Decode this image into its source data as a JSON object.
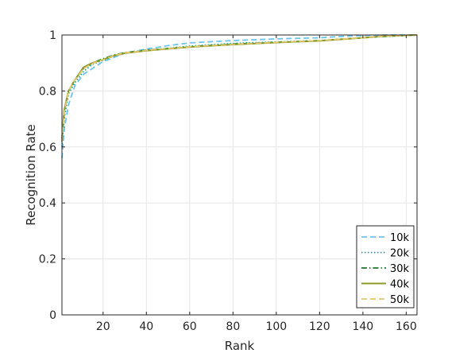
{
  "chart_data": {
    "type": "line",
    "title": "",
    "xlabel": "Rank",
    "ylabel": "Recognition Rate",
    "xlim": [
      1,
      165
    ],
    "ylim": [
      0,
      1
    ],
    "xticks": [
      20,
      40,
      60,
      80,
      100,
      120,
      140,
      160
    ],
    "yticks": [
      0,
      0.2,
      0.4,
      0.6,
      0.8,
      1
    ],
    "ytick_labels": [
      "0",
      "0.2",
      "0.4",
      "0.6",
      "0.8",
      "1"
    ],
    "grid": true,
    "legend_position": "bottom-right",
    "series": [
      {
        "name": "10k",
        "color": "#6ec4ee",
        "dash": "dashed",
        "points": [
          [
            1,
            0.56
          ],
          [
            2,
            0.66
          ],
          [
            4,
            0.75
          ],
          [
            7,
            0.82
          ],
          [
            11,
            0.86
          ],
          [
            15,
            0.88
          ],
          [
            20,
            0.905
          ],
          [
            25,
            0.92
          ],
          [
            30,
            0.935
          ],
          [
            40,
            0.95
          ],
          [
            50,
            0.962
          ],
          [
            60,
            0.972
          ],
          [
            80,
            0.98
          ],
          [
            100,
            0.986
          ],
          [
            120,
            0.99
          ],
          [
            130,
            0.995
          ],
          [
            140,
            0.998
          ],
          [
            150,
            1.0
          ],
          [
            165,
            1.0
          ]
        ]
      },
      {
        "name": "20k",
        "color": "#1aa39c",
        "dash": "dotted",
        "points": [
          [
            1,
            0.6
          ],
          [
            2,
            0.7
          ],
          [
            4,
            0.79
          ],
          [
            7,
            0.83
          ],
          [
            11,
            0.87
          ],
          [
            15,
            0.895
          ],
          [
            20,
            0.91
          ],
          [
            25,
            0.925
          ],
          [
            30,
            0.935
          ],
          [
            40,
            0.945
          ],
          [
            60,
            0.96
          ],
          [
            80,
            0.97
          ],
          [
            100,
            0.975
          ],
          [
            120,
            0.98
          ],
          [
            140,
            0.99
          ],
          [
            150,
            0.995
          ],
          [
            165,
            1.0
          ]
        ]
      },
      {
        "name": "30k",
        "color": "#1a7a2a",
        "dash": "dashdot",
        "points": [
          [
            1,
            0.62
          ],
          [
            2,
            0.72
          ],
          [
            4,
            0.8
          ],
          [
            7,
            0.84
          ],
          [
            11,
            0.88
          ],
          [
            15,
            0.9
          ],
          [
            20,
            0.915
          ],
          [
            25,
            0.928
          ],
          [
            30,
            0.937
          ],
          [
            40,
            0.946
          ],
          [
            60,
            0.958
          ],
          [
            80,
            0.968
          ],
          [
            100,
            0.974
          ],
          [
            120,
            0.98
          ],
          [
            140,
            0.99
          ],
          [
            150,
            0.995
          ],
          [
            165,
            1.0
          ]
        ]
      },
      {
        "name": "40k",
        "color": "#8c9a2a",
        "dash": "solid",
        "points": [
          [
            1,
            0.63
          ],
          [
            2,
            0.73
          ],
          [
            4,
            0.8
          ],
          [
            7,
            0.84
          ],
          [
            11,
            0.885
          ],
          [
            15,
            0.9
          ],
          [
            20,
            0.912
          ],
          [
            25,
            0.926
          ],
          [
            30,
            0.935
          ],
          [
            40,
            0.944
          ],
          [
            60,
            0.957
          ],
          [
            80,
            0.966
          ],
          [
            100,
            0.973
          ],
          [
            120,
            0.979
          ],
          [
            140,
            0.99
          ],
          [
            150,
            0.996
          ],
          [
            165,
            1.0
          ]
        ]
      },
      {
        "name": "50k",
        "color": "#e4c66a",
        "dash": "dashed",
        "points": [
          [
            1,
            0.62
          ],
          [
            2,
            0.72
          ],
          [
            4,
            0.8
          ],
          [
            7,
            0.84
          ],
          [
            11,
            0.88
          ],
          [
            15,
            0.898
          ],
          [
            20,
            0.912
          ],
          [
            25,
            0.926
          ],
          [
            30,
            0.936
          ],
          [
            40,
            0.945
          ],
          [
            60,
            0.958
          ],
          [
            80,
            0.967
          ],
          [
            100,
            0.974
          ],
          [
            120,
            0.98
          ],
          [
            140,
            0.99
          ],
          [
            150,
            0.996
          ],
          [
            165,
            1.0
          ]
        ]
      }
    ]
  }
}
